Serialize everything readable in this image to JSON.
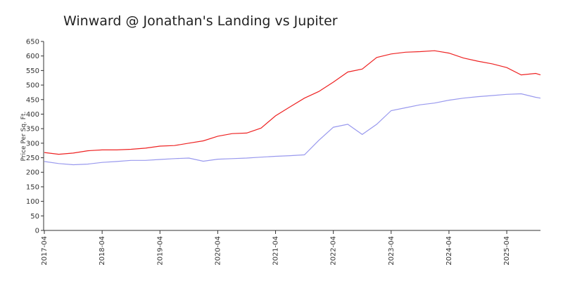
{
  "chart_data": {
    "type": "line",
    "title": "Winward @ Jonathan's Landing vs Jupiter",
    "y_label": "Price Per Sq. Ft.",
    "x": [
      "2017-04",
      "2017-07",
      "2017-10",
      "2018-01",
      "2018-04",
      "2018-07",
      "2018-10",
      "2019-01",
      "2019-04",
      "2019-07",
      "2019-10",
      "2020-01",
      "2020-04",
      "2020-07",
      "2020-10",
      "2021-01",
      "2021-04",
      "2021-07",
      "2021-10",
      "2022-01",
      "2022-04",
      "2022-07",
      "2022-10",
      "2023-01",
      "2023-04",
      "2023-07",
      "2023-10",
      "2024-01",
      "2024-04",
      "2024-07",
      "2024-10",
      "2025-01",
      "2025-04",
      "2025-07",
      "2025-10",
      "2025-11"
    ],
    "series": [
      {
        "color": "#ee2222",
        "values": [
          268,
          262,
          266,
          274,
          277,
          277,
          279,
          283,
          290,
          292,
          300,
          308,
          324,
          333,
          335,
          352,
          394,
          425,
          455,
          478,
          510,
          545,
          555,
          595,
          607,
          613,
          615,
          618,
          610,
          593,
          582,
          573,
          560,
          535,
          540,
          535
        ]
      },
      {
        "color": "#9999ee",
        "values": [
          237,
          230,
          226,
          228,
          234,
          237,
          241,
          241,
          244,
          247,
          249,
          238,
          245,
          247,
          249,
          252,
          255,
          257,
          260,
          310,
          355,
          365,
          330,
          365,
          412,
          422,
          432,
          438,
          448,
          455,
          460,
          464,
          468,
          470,
          458,
          455
        ]
      }
    ],
    "xlim": [
      "2017-04",
      "2025-11"
    ],
    "xticks": [
      "2017-04",
      "2018-04",
      "2019-04",
      "2020-04",
      "2021-04",
      "2022-04",
      "2023-04",
      "2024-04",
      "2025-04"
    ],
    "ylim": [
      0,
      650
    ],
    "yticks": [
      0,
      50,
      100,
      150,
      200,
      250,
      300,
      350,
      400,
      450,
      500,
      550,
      600,
      650
    ],
    "grid": false
  }
}
